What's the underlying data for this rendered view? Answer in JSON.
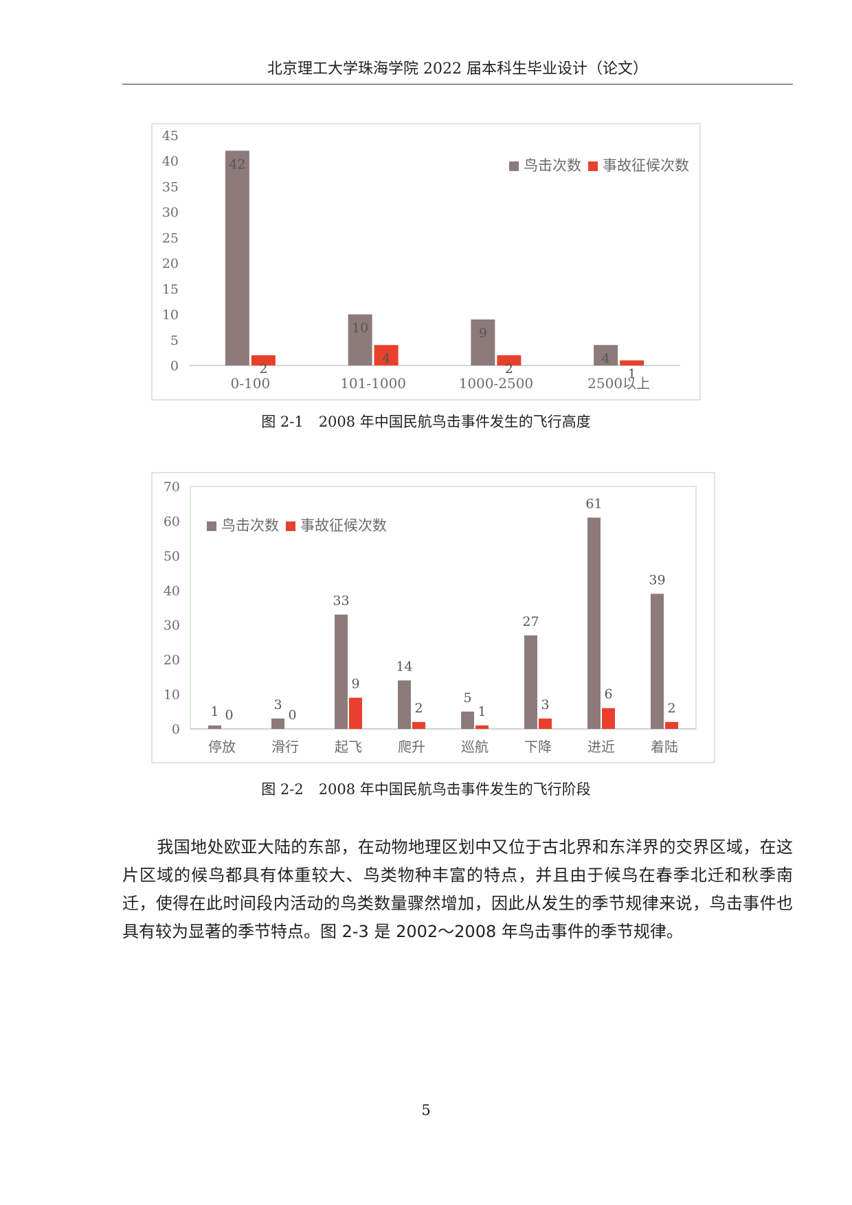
{
  "header": {
    "title": "北京理工大学珠海学院 2022 届本科生毕业设计（论文）"
  },
  "chart_data": [
    {
      "type": "bar",
      "categories": [
        "0-100",
        "101-1000",
        "1000-2500",
        "2500以上"
      ],
      "series": [
        {
          "name": "鸟击次数",
          "values": [
            42,
            10,
            9,
            4
          ],
          "labels": [
            "42",
            "10",
            "9",
            "4"
          ]
        },
        {
          "name": "事故征候次数",
          "values": [
            2,
            4,
            2,
            1
          ],
          "labels": [
            "2",
            "4",
            "2",
            "1"
          ]
        }
      ],
      "yticks": [
        "0",
        "5",
        "10",
        "15",
        "20",
        "25",
        "30",
        "35",
        "40",
        "45"
      ],
      "ylim": [
        0,
        45
      ],
      "title": "",
      "xlabel": "",
      "ylabel": "",
      "legend": "top-right",
      "colors": [
        "#8c7b7a",
        "#e8402c"
      ]
    },
    {
      "type": "bar",
      "categories": [
        "停放",
        "滑行",
        "起飞",
        "爬升",
        "巡航",
        "下降",
        "进近",
        "着陆"
      ],
      "series": [
        {
          "name": "鸟击次数",
          "values": [
            1,
            3,
            33,
            14,
            5,
            27,
            61,
            39
          ],
          "labels": [
            "1",
            "3",
            "33",
            "14",
            "5",
            "27",
            "61",
            "39"
          ]
        },
        {
          "name": "事故征候次数",
          "values": [
            0,
            0,
            9,
            2,
            1,
            3,
            6,
            2
          ],
          "labels": [
            "0",
            "0",
            "9",
            "2",
            "1",
            "3",
            "6",
            "2"
          ]
        }
      ],
      "yticks": [
        "0",
        "10",
        "20",
        "30",
        "40",
        "50",
        "60",
        "70"
      ],
      "ylim": [
        0,
        70
      ],
      "title": "",
      "xlabel": "",
      "ylabel": "",
      "legend": "top-left",
      "colors": [
        "#8c7b7a",
        "#e8402c"
      ]
    }
  ],
  "captions": [
    {
      "num": "图 2-1",
      "text": "2008 年中国民航鸟击事件发生的飞行高度"
    },
    {
      "num": "图 2-2",
      "text": "2008 年中国民航鸟击事件发生的飞行阶段"
    }
  ],
  "paragraph": "我国地处欧亚大陆的东部，在动物地理区划中又位于古北界和东洋界的交界区域，在这片区域的候鸟都具有体重较大、鸟类物种丰富的特点，并且由于候鸟在春季北迁和秋季南迁，使得在此时间段内活动的鸟类数量骤然增加，因此从发生的季节规律来说，鸟击事件也具有较为显著的季节特点。图 2-3 是 2002～2008 年鸟击事件的季节规律。",
  "page_number": "5"
}
